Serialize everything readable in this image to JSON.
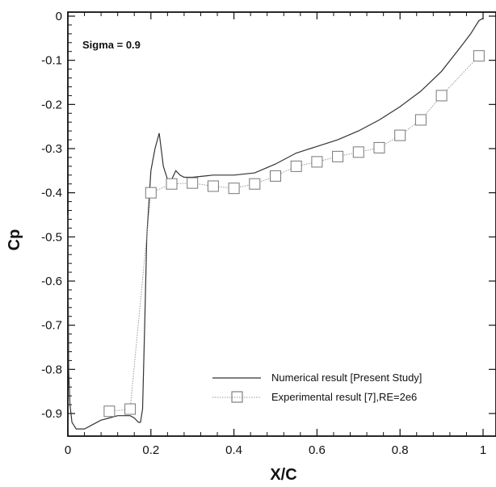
{
  "chart_data": {
    "type": "line",
    "xlabel": "X/C",
    "ylabel": "Cp",
    "xlim": [
      0,
      1
    ],
    "ylim": [
      -0.96,
      0.01
    ],
    "grid": false,
    "legend_position": "bottom-right",
    "annotation": "Sigma = 0.9",
    "x_ticks": [
      0,
      0.2,
      0.4,
      0.6,
      0.8,
      1
    ],
    "x_tick_labels": [
      "0",
      "0.2",
      "0.4",
      "0.6",
      "0.8",
      "1"
    ],
    "y_ticks": [
      0,
      -0.1,
      -0.2,
      -0.3,
      -0.4,
      -0.5,
      -0.6,
      -0.7,
      -0.8,
      -0.9
    ],
    "y_tick_labels": [
      "0",
      "-0.1",
      "-0.2",
      "-0.3",
      "-0.4",
      "-0.5",
      "-0.6",
      "-0.7",
      "-0.8",
      "-0.9"
    ],
    "series": [
      {
        "name": "Numerical result [Present Study]",
        "style": "solid line",
        "color": "#333333",
        "x": [
          0.0,
          0.002,
          0.005,
          0.01,
          0.02,
          0.04,
          0.06,
          0.08,
          0.1,
          0.12,
          0.14,
          0.15,
          0.16,
          0.17,
          0.175,
          0.18,
          0.185,
          0.19,
          0.2,
          0.21,
          0.22,
          0.23,
          0.24,
          0.25,
          0.26,
          0.27,
          0.28,
          0.3,
          0.35,
          0.4,
          0.45,
          0.5,
          0.55,
          0.6,
          0.65,
          0.7,
          0.75,
          0.8,
          0.85,
          0.9,
          0.95,
          0.97,
          0.99,
          1.0
        ],
        "y": [
          -0.45,
          -0.8,
          -0.88,
          -0.92,
          -0.935,
          -0.935,
          -0.925,
          -0.915,
          -0.91,
          -0.905,
          -0.905,
          -0.905,
          -0.91,
          -0.92,
          -0.92,
          -0.89,
          -0.7,
          -0.5,
          -0.35,
          -0.3,
          -0.265,
          -0.34,
          -0.37,
          -0.37,
          -0.35,
          -0.36,
          -0.365,
          -0.365,
          -0.36,
          -0.36,
          -0.355,
          -0.335,
          -0.31,
          -0.295,
          -0.28,
          -0.26,
          -0.235,
          -0.205,
          -0.17,
          -0.125,
          -0.065,
          -0.04,
          -0.01,
          -0.005
        ]
      },
      {
        "name": "Experimental result [7],RE=2e6",
        "style": "dotted line with open square markers",
        "color": "#999999",
        "x": [
          0.1,
          0.15,
          0.2,
          0.25,
          0.3,
          0.35,
          0.4,
          0.45,
          0.5,
          0.55,
          0.6,
          0.65,
          0.7,
          0.75,
          0.8,
          0.85,
          0.9,
          0.99
        ],
        "y": [
          -0.895,
          -0.89,
          -0.4,
          -0.38,
          -0.378,
          -0.385,
          -0.39,
          -0.38,
          -0.362,
          -0.34,
          -0.33,
          -0.318,
          -0.308,
          -0.298,
          -0.27,
          -0.235,
          -0.18,
          -0.09
        ]
      }
    ]
  }
}
